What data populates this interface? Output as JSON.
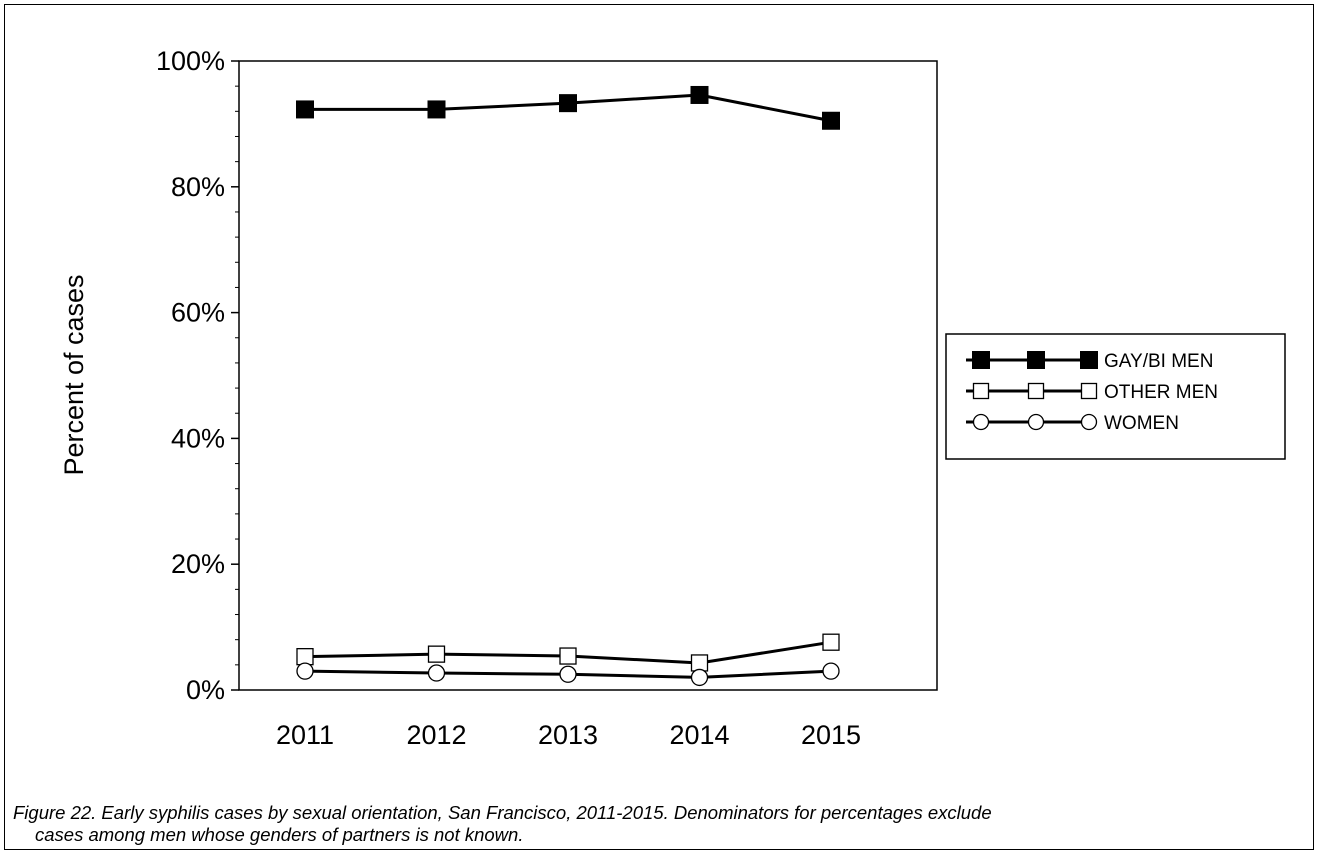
{
  "chart_data": {
    "type": "line",
    "x": [
      "2011",
      "2012",
      "2013",
      "2014",
      "2015"
    ],
    "ylabel": "Percent of cases",
    "ylim": [
      0,
      100
    ],
    "yticks": [
      "0%",
      "20%",
      "40%",
      "60%",
      "80%",
      "100%"
    ],
    "grid": false,
    "legend_placement": "right",
    "series": [
      {
        "name": "GAY/BI MEN",
        "marker": "filled-square",
        "values": [
          92.3,
          92.3,
          93.3,
          94.6,
          90.5
        ]
      },
      {
        "name": "OTHER MEN",
        "marker": "open-square",
        "values": [
          5.3,
          5.7,
          5.4,
          4.3,
          7.6
        ]
      },
      {
        "name": "WOMEN",
        "marker": "open-circle",
        "values": [
          3.0,
          2.7,
          2.5,
          2.0,
          3.0
        ]
      }
    ]
  },
  "caption_main": "Figure 22.  Early syphilis cases by sexual orientation, San Francisco, 2011-2015. Denominators for percentages exclude",
  "caption_cont": "cases among men whose genders of partners is not known.",
  "colors": {
    "line": "#000000",
    "background": "#ffffff"
  }
}
